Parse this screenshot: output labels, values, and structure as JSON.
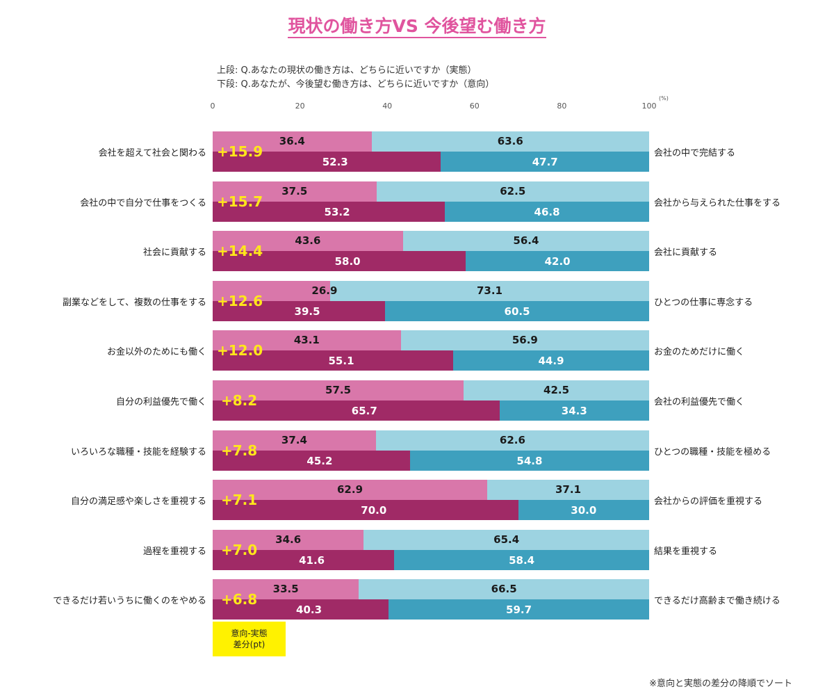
{
  "title": "現状の働き方VS 今後望む働き方",
  "question_top": "上段: Q.あなたの現状の働き方は、どちらに近いですか（実態）",
  "question_bottom": "下段: Q.あなたが、今後望む働き方は、どちらに近いですか（意向）",
  "axis_unit": "(%)",
  "legend_label_line1": "意向-実態",
  "legend_label_line2": "差分(pt)",
  "note": "※意向と実態の差分の降順でソート",
  "colors": {
    "actual_left": "#d977aa",
    "actual_right": "#9dd3e1",
    "intent_left": "#a02a66",
    "intent_right": "#3ea0be",
    "diff": "#ffe71b",
    "legend_bg": "#fff200",
    "title": "#e0549e"
  },
  "chart_data": {
    "type": "bar",
    "orientation": "horizontal-stacked-100",
    "x_ticks": [
      "0",
      "20",
      "40",
      "60",
      "80",
      "100"
    ],
    "xlim": [
      0,
      100
    ],
    "rows": [
      {
        "left_label": "会社を超えて社会と関わる",
        "right_label": "会社の中で完結する",
        "actual_left": 36.4,
        "actual_right": 63.6,
        "intent_left": 52.3,
        "intent_right": 47.7,
        "diff": "+15.9"
      },
      {
        "left_label": "会社の中で自分で仕事をつくる",
        "right_label": "会社から与えられた仕事をする",
        "actual_left": 37.5,
        "actual_right": 62.5,
        "intent_left": 53.2,
        "intent_right": 46.8,
        "diff": "+15.7"
      },
      {
        "left_label": "社会に貢献する",
        "right_label": "会社に貢献する",
        "actual_left": 43.6,
        "actual_right": 56.4,
        "intent_left": 58.0,
        "intent_right": 42.0,
        "diff": "+14.4"
      },
      {
        "left_label": "副業などをして、複数の仕事をする",
        "right_label": "ひとつの仕事に専念する",
        "actual_left": 26.9,
        "actual_right": 73.1,
        "intent_left": 39.5,
        "intent_right": 60.5,
        "diff": "+12.6"
      },
      {
        "left_label": "お金以外のためにも働く",
        "right_label": "お金のためだけに働く",
        "actual_left": 43.1,
        "actual_right": 56.9,
        "intent_left": 55.1,
        "intent_right": 44.9,
        "diff": "+12.0"
      },
      {
        "left_label": "自分の利益優先で働く",
        "right_label": "会社の利益優先で働く",
        "actual_left": 57.5,
        "actual_right": 42.5,
        "intent_left": 65.7,
        "intent_right": 34.3,
        "diff": "+8.2"
      },
      {
        "left_label": "いろいろな職種・技能を経験する",
        "right_label": "ひとつの職種・技能を極める",
        "actual_left": 37.4,
        "actual_right": 62.6,
        "intent_left": 45.2,
        "intent_right": 54.8,
        "diff": "+7.8"
      },
      {
        "left_label": "自分の満足感や楽しさを重視する",
        "right_label": "会社からの評価を重視する",
        "actual_left": 62.9,
        "actual_right": 37.1,
        "intent_left": 70.0,
        "intent_right": 30.0,
        "diff": "+7.1"
      },
      {
        "left_label": "過程を重視する",
        "right_label": "結果を重視する",
        "actual_left": 34.6,
        "actual_right": 65.4,
        "intent_left": 41.6,
        "intent_right": 58.4,
        "diff": "+7.0"
      },
      {
        "left_label": "できるだけ若いうちに働くのをやめる",
        "right_label": "できるだけ高齢まで働き続ける",
        "actual_left": 33.5,
        "actual_right": 66.5,
        "intent_left": 40.3,
        "intent_right": 59.7,
        "diff": "+6.8"
      }
    ]
  }
}
